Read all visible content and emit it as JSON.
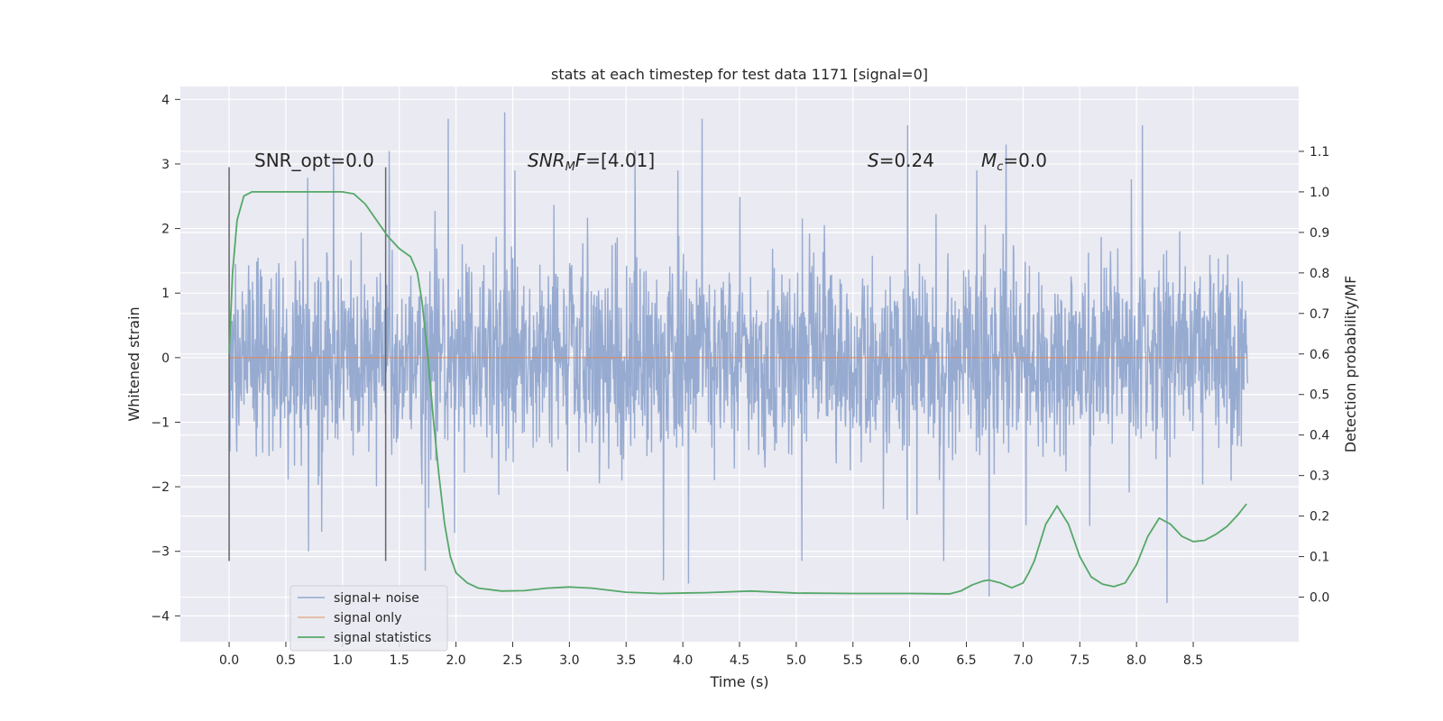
{
  "chart_data": {
    "type": "line",
    "title": "stats at each timestep for test data 1171 [signal=0]",
    "xlabel": "Time (s)",
    "ylabel": "Whitened strain",
    "y2label": "Detection probability/MF",
    "xlim": [
      -0.43,
      9.43
    ],
    "ylim": [
      -4.4,
      4.2
    ],
    "y2lim": [
      -0.11,
      1.26
    ],
    "x_ticks": [
      0.0,
      0.5,
      1.0,
      1.5,
      2.0,
      2.5,
      3.0,
      3.5,
      4.0,
      4.5,
      5.0,
      5.5,
      6.0,
      6.5,
      7.0,
      7.5,
      8.0,
      8.5
    ],
    "x_tick_labels": [
      "0.0",
      "0.5",
      "1.0",
      "1.5",
      "2.0",
      "2.5",
      "3.0",
      "3.5",
      "4.0",
      "4.5",
      "5.0",
      "5.5",
      "6.0",
      "6.5",
      "7.0",
      "7.5",
      "8.0",
      "8.5"
    ],
    "y_ticks": [
      4,
      3,
      2,
      1,
      0,
      -1,
      -2,
      -3,
      -4
    ],
    "y_tick_labels": [
      "4",
      "3",
      "2",
      "1",
      "0",
      "−1",
      "−2",
      "−3",
      "−4"
    ],
    "y2_ticks": [
      1.1,
      1.0,
      0.9,
      0.8,
      0.7,
      0.6,
      0.5,
      0.4,
      0.3,
      0.2,
      0.1,
      0.0
    ],
    "y2_tick_labels": [
      "1.1",
      "1.0",
      "0.9",
      "0.8",
      "0.7",
      "0.6",
      "0.5",
      "0.4",
      "0.3",
      "0.2",
      "0.1",
      "0.0"
    ],
    "grid": true,
    "legend_position": "lower-left",
    "legend": [
      {
        "label": "signal+ noise",
        "color": "#92a8cf"
      },
      {
        "label": "signal only",
        "color": "#dd8452"
      },
      {
        "label": "signal statistics",
        "color": "#55a868"
      }
    ],
    "annotations": {
      "snr_opt": "SNR_opt=0.0",
      "snr_mf_base": "SNR",
      "snr_mf_sub": "M",
      "snr_mf_rest": "F",
      "snr_mf_value": "=[4.01]",
      "s_label": "S",
      "s_value": "=0.24",
      "mc_label": "M",
      "mc_sub": "c",
      "mc_value": "=0.0"
    },
    "vertical_markers": [
      0.0,
      1.38
    ],
    "noise": {
      "t_start": 0.0,
      "t_end": 8.98,
      "typical_range": [
        -1.5,
        1.9
      ],
      "extreme_range": [
        -3.8,
        3.8
      ],
      "peaks_high": [
        {
          "t": 1.93,
          "v": 3.7
        },
        {
          "t": 2.43,
          "v": 3.8
        },
        {
          "t": 4.17,
          "v": 3.7
        },
        {
          "t": 5.98,
          "v": 3.6
        },
        {
          "t": 8.05,
          "v": 3.6
        },
        {
          "t": 1.41,
          "v": 3.2
        },
        {
          "t": 0.92,
          "v": 3.1
        },
        {
          "t": 3.58,
          "v": 3.2
        },
        {
          "t": 6.85,
          "v": 3.3
        }
      ],
      "peaks_low": [
        {
          "t": 0.7,
          "v": -3.0
        },
        {
          "t": 1.73,
          "v": -3.3
        },
        {
          "t": 3.83,
          "v": -3.45
        },
        {
          "t": 4.05,
          "v": -3.5
        },
        {
          "t": 6.7,
          "v": -3.7
        },
        {
          "t": 8.27,
          "v": -3.8
        },
        {
          "t": 5.05,
          "v": -3.15
        },
        {
          "t": 6.3,
          "v": -3.15
        }
      ]
    },
    "series": [
      {
        "name": "signal only",
        "color": "#dd8452",
        "x": [
          0.0,
          8.98
        ],
        "values": [
          0.0,
          0.0
        ]
      },
      {
        "name": "signal statistics",
        "color": "#55a868",
        "x": [
          0.0,
          0.03,
          0.07,
          0.13,
          0.2,
          0.3,
          0.5,
          0.7,
          0.9,
          1.0,
          1.1,
          1.2,
          1.3,
          1.4,
          1.5,
          1.6,
          1.66,
          1.7,
          1.75,
          1.8,
          1.85,
          1.9,
          1.95,
          2.0,
          2.1,
          2.2,
          2.4,
          2.6,
          2.8,
          3.0,
          3.2,
          3.5,
          3.8,
          4.2,
          4.6,
          5.0,
          5.5,
          6.0,
          6.35,
          6.45,
          6.55,
          6.65,
          6.7,
          6.8,
          6.9,
          7.0,
          7.05,
          7.1,
          7.2,
          7.3,
          7.4,
          7.5,
          7.6,
          7.7,
          7.8,
          7.9,
          8.0,
          8.1,
          8.2,
          8.3,
          8.4,
          8.5,
          8.6,
          8.7,
          8.8,
          8.9,
          8.97
        ],
        "values": [
          0.6,
          0.8,
          0.93,
          0.99,
          1.0,
          1.0,
          1.0,
          1.0,
          1.0,
          1.0,
          0.995,
          0.97,
          0.93,
          0.89,
          0.86,
          0.84,
          0.8,
          0.73,
          0.6,
          0.44,
          0.3,
          0.18,
          0.1,
          0.06,
          0.035,
          0.022,
          0.015,
          0.016,
          0.022,
          0.025,
          0.022,
          0.012,
          0.009,
          0.011,
          0.015,
          0.01,
          0.009,
          0.009,
          0.008,
          0.015,
          0.03,
          0.04,
          0.042,
          0.035,
          0.023,
          0.035,
          0.06,
          0.09,
          0.18,
          0.225,
          0.18,
          0.1,
          0.05,
          0.032,
          0.026,
          0.035,
          0.08,
          0.15,
          0.195,
          0.18,
          0.15,
          0.137,
          0.14,
          0.155,
          0.175,
          0.205,
          0.23
        ]
      }
    ]
  }
}
